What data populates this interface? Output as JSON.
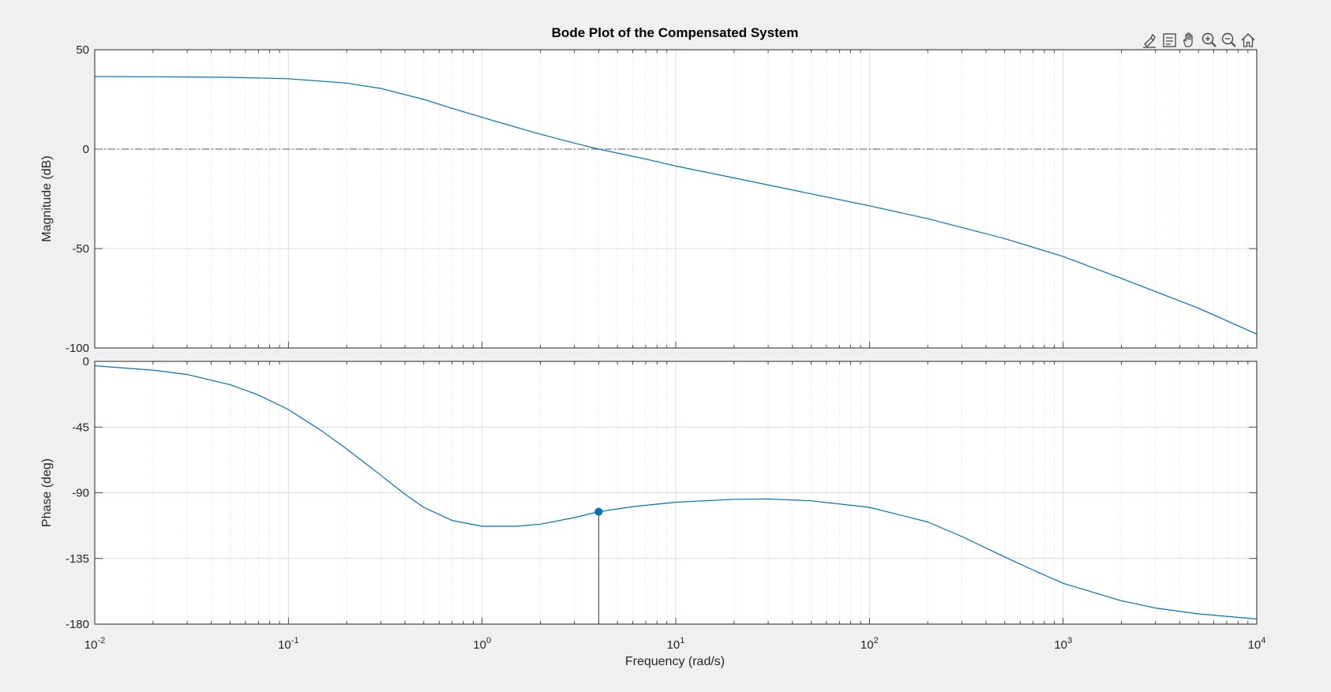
{
  "chart_data": {
    "type": "line",
    "title": "Bode Plot of the Compensated System",
    "xlabel": "Frequency  (rad/s)",
    "x_scale": "log",
    "xlim": [
      0.01,
      10000
    ],
    "x_ticks": [
      {
        "value": 0.01,
        "base": "10",
        "exp": "-2"
      },
      {
        "value": 0.1,
        "base": "10",
        "exp": "-1"
      },
      {
        "value": 1,
        "base": "10",
        "exp": "0"
      },
      {
        "value": 10,
        "base": "10",
        "exp": "1"
      },
      {
        "value": 100,
        "base": "10",
        "exp": "2"
      },
      {
        "value": 1000,
        "base": "10",
        "exp": "3"
      },
      {
        "value": 10000,
        "base": "10",
        "exp": "4"
      }
    ],
    "grid": true,
    "color": "#0072bd",
    "panels": [
      {
        "name": "magnitude",
        "ylabel": "Magnitude (dB)",
        "ylim": [
          -100,
          50
        ],
        "yticks": [
          50,
          0,
          -50,
          -100
        ],
        "ytick_labels": [
          "50",
          "0",
          "-50",
          "-100"
        ],
        "reference_line": 0,
        "points": [
          {
            "x": 0.01,
            "y": 36.5
          },
          {
            "x": 0.02,
            "y": 36.4
          },
          {
            "x": 0.05,
            "y": 36.1
          },
          {
            "x": 0.1,
            "y": 35.4
          },
          {
            "x": 0.2,
            "y": 33.2
          },
          {
            "x": 0.3,
            "y": 30.5
          },
          {
            "x": 0.5,
            "y": 25.0
          },
          {
            "x": 0.7,
            "y": 20.5
          },
          {
            "x": 1.0,
            "y": 16.0
          },
          {
            "x": 1.5,
            "y": 11.0
          },
          {
            "x": 2.0,
            "y": 7.5
          },
          {
            "x": 3.0,
            "y": 3.0
          },
          {
            "x": 4.0,
            "y": 0.0
          },
          {
            "x": 5.0,
            "y": -2.0
          },
          {
            "x": 7.0,
            "y": -5.0
          },
          {
            "x": 10,
            "y": -8.5
          },
          {
            "x": 20,
            "y": -14.5
          },
          {
            "x": 50,
            "y": -22.5
          },
          {
            "x": 100,
            "y": -28.5
          },
          {
            "x": 200,
            "y": -35.0
          },
          {
            "x": 500,
            "y": -45.0
          },
          {
            "x": 1000,
            "y": -54.0
          },
          {
            "x": 2000,
            "y": -65.0
          },
          {
            "x": 5000,
            "y": -80.0
          },
          {
            "x": 10000,
            "y": -93.0
          }
        ]
      },
      {
        "name": "phase",
        "ylabel": "Phase (deg)",
        "ylim": [
          -180,
          0
        ],
        "yticks": [
          0,
          -45,
          -90,
          -135,
          -180
        ],
        "ytick_labels": [
          "0",
          "-45",
          "-90",
          "-135",
          "-180"
        ],
        "reference_line": -180,
        "points": [
          {
            "x": 0.01,
            "y": -3.0
          },
          {
            "x": 0.02,
            "y": -6.0
          },
          {
            "x": 0.03,
            "y": -9.0
          },
          {
            "x": 0.05,
            "y": -16.0
          },
          {
            "x": 0.07,
            "y": -23.0
          },
          {
            "x": 0.1,
            "y": -33.0
          },
          {
            "x": 0.15,
            "y": -48.0
          },
          {
            "x": 0.2,
            "y": -60.0
          },
          {
            "x": 0.3,
            "y": -78.0
          },
          {
            "x": 0.4,
            "y": -91.0
          },
          {
            "x": 0.5,
            "y": -100.0
          },
          {
            "x": 0.7,
            "y": -109.0
          },
          {
            "x": 1.0,
            "y": -113.0
          },
          {
            "x": 1.5,
            "y": -113.0
          },
          {
            "x": 2.0,
            "y": -111.5
          },
          {
            "x": 3.0,
            "y": -107.0
          },
          {
            "x": 4.0,
            "y": -103.0
          },
          {
            "x": 6.0,
            "y": -99.5
          },
          {
            "x": 10,
            "y": -96.5
          },
          {
            "x": 20,
            "y": -94.5
          },
          {
            "x": 30,
            "y": -94.2
          },
          {
            "x": 50,
            "y": -95.5
          },
          {
            "x": 100,
            "y": -100.0
          },
          {
            "x": 200,
            "y": -110.0
          },
          {
            "x": 300,
            "y": -120.0
          },
          {
            "x": 500,
            "y": -134.0
          },
          {
            "x": 700,
            "y": -143.0
          },
          {
            "x": 1000,
            "y": -152.0
          },
          {
            "x": 2000,
            "y": -164.0
          },
          {
            "x": 3000,
            "y": -169.0
          },
          {
            "x": 5000,
            "y": -173.0
          },
          {
            "x": 10000,
            "y": -176.5
          }
        ],
        "marker": {
          "x": 4.0,
          "y": -103.0
        }
      }
    ]
  },
  "toolbar": [
    {
      "name": "brush-icon"
    },
    {
      "name": "datatip-icon"
    },
    {
      "name": "pan-hand-icon"
    },
    {
      "name": "zoom-in-icon"
    },
    {
      "name": "zoom-out-icon"
    },
    {
      "name": "home-icon"
    }
  ]
}
